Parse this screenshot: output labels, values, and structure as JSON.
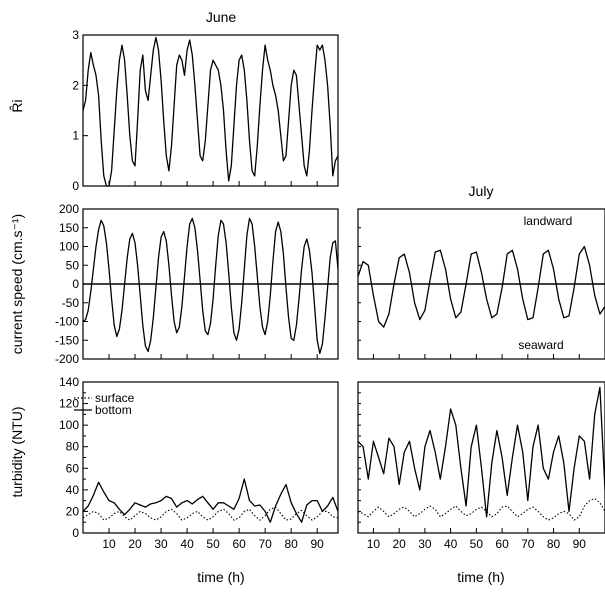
{
  "figure": {
    "titles": {
      "june": "June",
      "july": "July"
    },
    "x_axis_label": "time (h)",
    "y_axis_labels": {
      "ri": "R̂i",
      "speed": "current speed (cm.s⁻¹)",
      "turbidity": "turbidity (NTU)"
    },
    "annotations": {
      "landward": "landward",
      "seaward": "seaward"
    },
    "legend": {
      "surface": "surface",
      "bottom": "bottom"
    }
  },
  "chart_data": [
    {
      "id": "june_ri",
      "type": "line",
      "title": "June",
      "xlabel": "",
      "ylabel": "R̂i",
      "xlim": [
        0,
        98
      ],
      "ylim": [
        0,
        3
      ],
      "yticks": [
        0,
        1,
        2,
        3
      ],
      "ytick_labels": [
        "0",
        "1",
        "2",
        "3"
      ],
      "xticks": [
        10,
        20,
        30,
        40,
        50,
        60,
        70,
        80,
        90
      ],
      "xtick_labels": [],
      "series": [
        {
          "style": "solid",
          "x": [
            0,
            1,
            2,
            3,
            4,
            5,
            6,
            7,
            8,
            9,
            10,
            11,
            12,
            13,
            14,
            15,
            16,
            17,
            18,
            19,
            20,
            21,
            22,
            23,
            24,
            25,
            26,
            27,
            28,
            29,
            30,
            31,
            32,
            33,
            34,
            35,
            36,
            37,
            38,
            39,
            40,
            41,
            42,
            43,
            44,
            45,
            46,
            47,
            48,
            49,
            50,
            51,
            52,
            53,
            54,
            55,
            56,
            57,
            58,
            59,
            60,
            61,
            62,
            63,
            64,
            65,
            66,
            67,
            68,
            69,
            70,
            71,
            72,
            73,
            74,
            75,
            76,
            77,
            78,
            79,
            80,
            81,
            82,
            83,
            84,
            85,
            86,
            87,
            88,
            89,
            90,
            91,
            92,
            93,
            94,
            95,
            96,
            97,
            98
          ],
          "y": [
            1.5,
            1.7,
            2.3,
            2.65,
            2.4,
            2.2,
            1.8,
            0.9,
            0.2,
            0.0,
            0.0,
            0.3,
            1.1,
            1.9,
            2.5,
            2.8,
            2.5,
            1.8,
            1.0,
            0.5,
            0.4,
            1.3,
            2.3,
            2.6,
            1.9,
            1.7,
            2.2,
            2.7,
            2.95,
            2.7,
            2.1,
            1.3,
            0.6,
            0.3,
            0.8,
            1.6,
            2.4,
            2.6,
            2.5,
            2.2,
            2.7,
            2.9,
            2.6,
            2.0,
            1.3,
            0.6,
            0.5,
            0.9,
            1.6,
            2.3,
            2.5,
            2.4,
            2.3,
            2.0,
            1.5,
            0.7,
            0.1,
            0.4,
            1.2,
            2.0,
            2.5,
            2.6,
            2.3,
            1.7,
            0.9,
            0.3,
            0.2,
            0.8,
            1.6,
            2.3,
            2.8,
            2.5,
            2.3,
            2.0,
            1.8,
            1.5,
            1.0,
            0.5,
            0.6,
            1.3,
            2.0,
            2.3,
            2.2,
            1.6,
            1.0,
            0.4,
            0.2,
            0.7,
            1.5,
            2.2,
            2.8,
            2.7,
            2.8,
            2.5,
            2.0,
            1.2,
            0.2,
            0.5,
            0.6
          ]
        }
      ]
    },
    {
      "id": "june_speed",
      "type": "line",
      "xlabel": "",
      "ylabel": "current speed (cm.s⁻¹)",
      "xlim": [
        0,
        98
      ],
      "ylim": [
        -200,
        200
      ],
      "yticks": [
        -200,
        -150,
        -100,
        -50,
        0,
        50,
        100,
        150,
        200
      ],
      "ytick_labels": [
        "-200",
        "-150",
        "-100",
        "-50",
        "0",
        "50",
        "100",
        "150",
        "200"
      ],
      "xticks": [
        10,
        20,
        30,
        40,
        50,
        60,
        70,
        80,
        90
      ],
      "xtick_labels": [],
      "reference_line_y": 0,
      "series": [
        {
          "style": "solid",
          "x": [
            0,
            1,
            2,
            3,
            4,
            5,
            6,
            7,
            8,
            9,
            10,
            11,
            12,
            13,
            14,
            15,
            16,
            17,
            18,
            19,
            20,
            21,
            22,
            23,
            24,
            25,
            26,
            27,
            28,
            29,
            30,
            31,
            32,
            33,
            34,
            35,
            36,
            37,
            38,
            39,
            40,
            41,
            42,
            43,
            44,
            45,
            46,
            47,
            48,
            49,
            50,
            51,
            52,
            53,
            54,
            55,
            56,
            57,
            58,
            59,
            60,
            61,
            62,
            63,
            64,
            65,
            66,
            67,
            68,
            69,
            70,
            71,
            72,
            73,
            74,
            75,
            76,
            77,
            78,
            79,
            80,
            81,
            82,
            83,
            84,
            85,
            86,
            87,
            88,
            89,
            90,
            91,
            92,
            93,
            94,
            95,
            96,
            97,
            98
          ],
          "y": [
            -100,
            -95,
            -70,
            -20,
            40,
            100,
            145,
            170,
            155,
            110,
            40,
            -40,
            -110,
            -140,
            -120,
            -70,
            0,
            70,
            120,
            135,
            110,
            50,
            -30,
            -110,
            -165,
            -180,
            -150,
            -90,
            -10,
            70,
            125,
            140,
            115,
            50,
            -30,
            -100,
            -130,
            -115,
            -60,
            20,
            100,
            160,
            175,
            150,
            90,
            10,
            -70,
            -125,
            -135,
            -105,
            -40,
            50,
            130,
            170,
            160,
            110,
            30,
            -60,
            -130,
            -150,
            -120,
            -50,
            40,
            130,
            175,
            160,
            100,
            20,
            -60,
            -115,
            -135,
            -100,
            -30,
            60,
            140,
            165,
            140,
            80,
            -10,
            -90,
            -145,
            -150,
            -110,
            -40,
            40,
            100,
            120,
            90,
            30,
            -60,
            -150,
            -185,
            -160,
            -90,
            -10,
            70,
            110,
            115,
            40
          ]
        }
      ]
    },
    {
      "id": "june_turbidity",
      "type": "line",
      "xlabel": "time (h)",
      "ylabel": "turbidity (NTU)",
      "xlim": [
        0,
        98
      ],
      "ylim": [
        0,
        140
      ],
      "yticks": [
        0,
        10,
        20,
        30,
        40,
        50,
        60,
        70,
        80,
        90,
        100,
        110,
        120,
        130,
        140
      ],
      "ytick_labels": [
        "0",
        "",
        "20",
        "",
        "40",
        "",
        "60",
        "",
        "80",
        "",
        "100",
        "",
        "120",
        "",
        "140"
      ],
      "xticks": [
        10,
        20,
        30,
        40,
        50,
        60,
        70,
        80,
        90
      ],
      "xtick_labels": [
        "10",
        "20",
        "30",
        "40",
        "50",
        "60",
        "70",
        "80",
        "90"
      ],
      "legend_position": "top-left",
      "series": [
        {
          "name": "surface",
          "style": "dotted",
          "x": [
            0,
            2,
            4,
            6,
            8,
            10,
            12,
            14,
            16,
            18,
            20,
            22,
            24,
            26,
            28,
            30,
            32,
            34,
            36,
            38,
            40,
            42,
            44,
            46,
            48,
            50,
            52,
            54,
            56,
            58,
            60,
            62,
            64,
            66,
            68,
            70,
            72,
            74,
            76,
            78,
            80,
            82,
            84,
            86,
            88,
            90,
            92,
            94,
            96,
            98
          ],
          "y": [
            14,
            17,
            20,
            18,
            12,
            14,
            18,
            20,
            15,
            12,
            16,
            20,
            18,
            14,
            12,
            15,
            20,
            22,
            18,
            12,
            14,
            18,
            20,
            15,
            12,
            15,
            20,
            22,
            18,
            12,
            14,
            20,
            22,
            16,
            12,
            16,
            22,
            24,
            18,
            12,
            13,
            18,
            21,
            16,
            12,
            15,
            20,
            20,
            15,
            14
          ]
        },
        {
          "name": "bottom",
          "style": "solid",
          "x": [
            0,
            2,
            4,
            6,
            8,
            10,
            12,
            14,
            16,
            18,
            20,
            22,
            24,
            26,
            28,
            30,
            32,
            34,
            36,
            38,
            40,
            42,
            44,
            46,
            48,
            50,
            52,
            54,
            56,
            58,
            60,
            62,
            64,
            66,
            68,
            70,
            72,
            74,
            76,
            78,
            80,
            82,
            84,
            86,
            88,
            90,
            92,
            94,
            96,
            98
          ],
          "y": [
            20,
            25,
            35,
            47,
            38,
            30,
            28,
            22,
            17,
            22,
            28,
            26,
            24,
            27,
            28,
            30,
            34,
            32,
            24,
            28,
            30,
            27,
            31,
            34,
            28,
            22,
            28,
            28,
            25,
            22,
            32,
            50,
            30,
            25,
            26,
            20,
            10,
            25,
            36,
            45,
            28,
            18,
            10,
            26,
            30,
            30,
            20,
            25,
            33,
            20
          ]
        }
      ]
    },
    {
      "id": "july_speed",
      "type": "line",
      "title": "July",
      "xlabel": "",
      "ylabel": "",
      "xlim": [
        4,
        100
      ],
      "ylim": [
        -200,
        200
      ],
      "yticks": [
        -200,
        -150,
        -100,
        -50,
        0,
        50,
        100,
        150,
        200
      ],
      "ytick_labels": [],
      "xticks": [
        10,
        20,
        30,
        40,
        50,
        60,
        70,
        80,
        90
      ],
      "xtick_labels": [],
      "reference_line_y": 0,
      "series": [
        {
          "style": "solid",
          "x": [
            4,
            6,
            8,
            10,
            12,
            14,
            16,
            18,
            20,
            22,
            24,
            26,
            28,
            30,
            32,
            34,
            36,
            38,
            40,
            42,
            44,
            46,
            48,
            50,
            52,
            54,
            56,
            58,
            60,
            62,
            64,
            66,
            68,
            70,
            72,
            74,
            76,
            78,
            80,
            82,
            84,
            86,
            88,
            90,
            92,
            94,
            96,
            98,
            100
          ],
          "y": [
            20,
            60,
            50,
            -30,
            -100,
            -115,
            -80,
            0,
            70,
            80,
            30,
            -50,
            -95,
            -70,
            10,
            85,
            90,
            40,
            -40,
            -90,
            -75,
            0,
            80,
            85,
            30,
            -40,
            -90,
            -80,
            -10,
            80,
            90,
            40,
            -40,
            -95,
            -90,
            -10,
            80,
            90,
            40,
            -40,
            -90,
            -85,
            -10,
            80,
            100,
            50,
            -30,
            -80,
            -60
          ]
        }
      ]
    },
    {
      "id": "july_turbidity",
      "type": "line",
      "xlabel": "time (h)",
      "ylabel": "",
      "xlim": [
        4,
        100
      ],
      "ylim": [
        0,
        140
      ],
      "yticks": [
        0,
        10,
        20,
        30,
        40,
        50,
        60,
        70,
        80,
        90,
        100,
        110,
        120,
        130,
        140
      ],
      "ytick_labels": [],
      "xticks": [
        10,
        20,
        30,
        40,
        50,
        60,
        70,
        80,
        90
      ],
      "xtick_labels": [
        "10",
        "20",
        "30",
        "40",
        "50",
        "60",
        "70",
        "80",
        "90"
      ],
      "series": [
        {
          "name": "surface",
          "style": "dotted",
          "x": [
            4,
            6,
            8,
            10,
            12,
            14,
            16,
            18,
            20,
            22,
            24,
            26,
            28,
            30,
            32,
            34,
            36,
            38,
            40,
            42,
            44,
            46,
            48,
            50,
            52,
            54,
            56,
            58,
            60,
            62,
            64,
            66,
            68,
            70,
            72,
            74,
            76,
            78,
            80,
            82,
            84,
            86,
            88,
            90,
            92,
            94,
            96,
            98,
            100
          ],
          "y": [
            20,
            18,
            15,
            20,
            24,
            20,
            15,
            18,
            22,
            24,
            20,
            15,
            18,
            22,
            25,
            22,
            15,
            18,
            22,
            25,
            20,
            16,
            18,
            22,
            24,
            20,
            15,
            18,
            24,
            25,
            20,
            15,
            18,
            22,
            24,
            20,
            15,
            12,
            14,
            18,
            20,
            18,
            12,
            15,
            25,
            30,
            32,
            28,
            20
          ]
        },
        {
          "name": "bottom",
          "style": "solid",
          "x": [
            4,
            6,
            8,
            10,
            12,
            14,
            16,
            18,
            20,
            22,
            24,
            26,
            28,
            30,
            32,
            34,
            36,
            38,
            40,
            42,
            44,
            46,
            48,
            50,
            52,
            54,
            56,
            58,
            60,
            62,
            64,
            66,
            68,
            70,
            72,
            74,
            76,
            78,
            80,
            82,
            84,
            86,
            88,
            90,
            92,
            94,
            96,
            98,
            100
          ],
          "y": [
            85,
            80,
            50,
            85,
            70,
            55,
            88,
            80,
            45,
            75,
            85,
            60,
            40,
            80,
            95,
            75,
            50,
            80,
            115,
            100,
            60,
            25,
            80,
            100,
            60,
            15,
            65,
            95,
            70,
            35,
            70,
            100,
            75,
            30,
            80,
            100,
            60,
            50,
            75,
            90,
            65,
            20,
            60,
            90,
            85,
            50,
            110,
            135,
            40
          ]
        }
      ]
    }
  ]
}
